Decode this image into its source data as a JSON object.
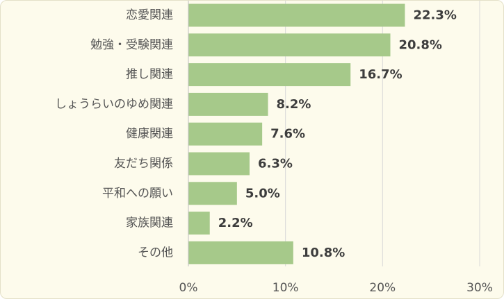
{
  "chart_data": {
    "type": "bar",
    "orientation": "horizontal",
    "categories": [
      "恋愛関連",
      "勉強・受験関連",
      "推し関連",
      "しょうらいのゆめ関連",
      "健康関連",
      "友だち関係",
      "平和への願い",
      "家族関連",
      "その他"
    ],
    "values": [
      22.3,
      20.8,
      16.7,
      8.2,
      7.6,
      6.3,
      5.0,
      2.2,
      10.8
    ],
    "value_labels": [
      "22.3%",
      "20.8%",
      "16.7%",
      "8.2%",
      "7.6%",
      "6.3%",
      "5.0%",
      "2.2%",
      "10.8%"
    ],
    "x_ticks": [
      0,
      10,
      20,
      30
    ],
    "x_tick_labels": [
      "0%",
      "10%",
      "20%",
      "30%"
    ],
    "xlim": [
      0,
      30
    ],
    "title": "",
    "xlabel": "",
    "ylabel": "",
    "grid": "vertical",
    "legend": "none",
    "colors": {
      "bar": "#a6c98a",
      "background": "#fdfbec",
      "grid": "#d9d9d9",
      "axis": "#bfbfbf"
    }
  }
}
